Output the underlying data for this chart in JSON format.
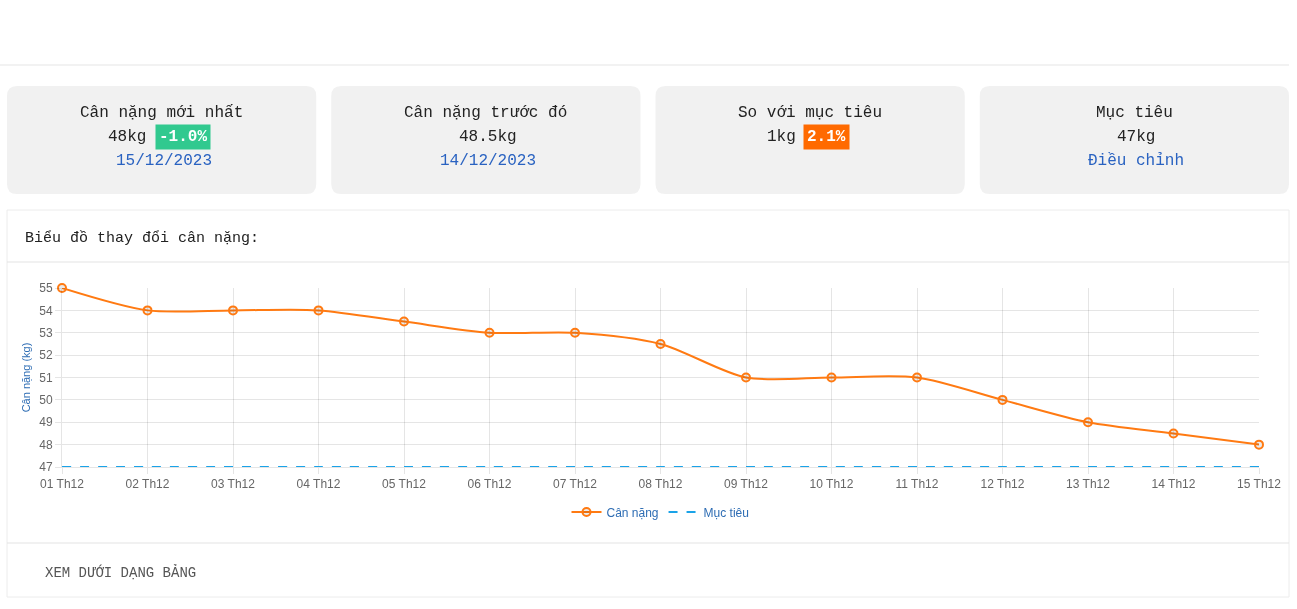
{
  "chart_data": [
    {
      "type": "other",
      "title": "Cân nặng mới nhất",
      "annotations": [
        "48kg",
        "-1.0%",
        "15/12/2023"
      ],
      "colors": [
        null,
        "#31c98f",
        null
      ]
    },
    {
      "type": "other",
      "title": "Cân nặng trước đó",
      "annotations": [
        "48.5kg",
        "14/12/2023"
      ]
    },
    {
      "type": "other",
      "title": "So với mục tiêu",
      "annotations": [
        "1kg",
        "2.1%"
      ],
      "colors": [
        null,
        "#ff6a00"
      ]
    },
    {
      "type": "other",
      "title": "Mục tiêu",
      "annotations": [
        "47kg",
        "Điều chỉnh"
      ]
    },
    {
      "type": "line",
      "title": "Biểu đồ thay đổi cân nặng:",
      "ylabel": "Cân nặng (kg)",
      "categories": [
        "01 Th12",
        "02 Th12",
        "03 Th12",
        "04 Th12",
        "05 Th12",
        "06 Th12",
        "07 Th12",
        "08 Th12",
        "09 Th12",
        "10 Th12",
        "11 Th12",
        "12 Th12",
        "13 Th12",
        "14 Th12",
        "15 Th12"
      ],
      "series": [
        {
          "name": "Cân nặng",
          "color": "#ff7a12",
          "marker": "circle",
          "values": [
            55,
            54,
            54,
            54,
            53.5,
            53,
            53,
            52.5,
            51,
            51,
            51,
            50,
            49,
            48.5,
            48
          ]
        },
        {
          "name": "Mục tiêu",
          "color": "#1aa3e8",
          "marker": "none",
          "line_style": "dashed",
          "values": [
            47,
            47,
            47,
            47,
            47,
            47,
            47,
            47,
            47,
            47,
            47,
            47,
            47,
            47,
            47
          ]
        }
      ],
      "ylim": [
        47,
        55
      ],
      "yticks": [
        47,
        48,
        49,
        50,
        51,
        52,
        53,
        54,
        55
      ],
      "grid": true,
      "legend": "bottom",
      "annotations": [
        "XEM DƯỚI DẠNG BẢNG"
      ]
    }
  ]
}
